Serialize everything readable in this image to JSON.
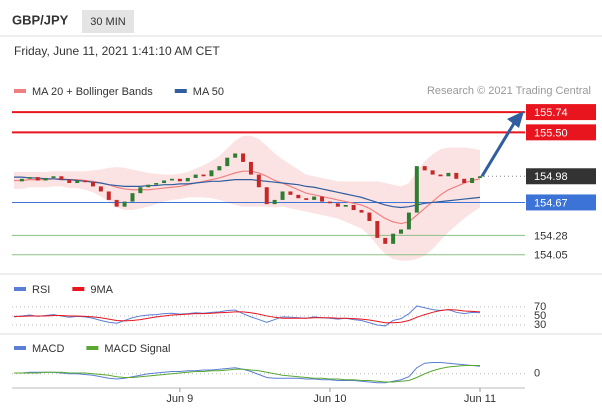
{
  "header": {
    "symbol": "GBP/JPY",
    "interval": "30 MIN",
    "timestamp": "Friday, June 11, 2021 1:41:10 AM CET"
  },
  "chart_data": [
    {
      "type": "candlestick",
      "credit": "Research © 2021 Trading Central",
      "categories": [
        null,
        null,
        null,
        null,
        null,
        null,
        null,
        null,
        null,
        null,
        null,
        null,
        null,
        null,
        null,
        null,
        null,
        null,
        null,
        null,
        null,
        "Jun 9",
        null,
        null,
        null,
        null,
        null,
        null,
        null,
        null,
        null,
        null,
        null,
        null,
        null,
        null,
        null,
        null,
        null,
        null,
        "Jun 10",
        null,
        null,
        null,
        null,
        null,
        null,
        null,
        null,
        null,
        null,
        null,
        null,
        null,
        null,
        null,
        null,
        null,
        null,
        "Jun 11"
      ],
      "values": [
        154.92,
        154.95,
        154.97,
        154.93,
        154.96,
        154.98,
        154.94,
        154.9,
        154.93,
        154.91,
        154.86,
        154.8,
        154.7,
        154.62,
        154.68,
        154.78,
        154.85,
        154.88,
        154.9,
        154.93,
        154.95,
        154.92,
        154.96,
        155.0,
        154.98,
        155.05,
        155.1,
        155.2,
        155.25,
        155.15,
        155.0,
        154.85,
        154.65,
        154.7,
        154.8,
        154.76,
        154.72,
        154.7,
        154.74,
        154.68,
        154.66,
        154.62,
        154.64,
        154.58,
        154.55,
        154.45,
        154.25,
        154.18,
        154.3,
        154.35,
        154.55,
        155.1,
        155.05,
        155.0,
        154.98,
        155.02,
        154.95,
        154.9,
        154.96,
        154.98
      ],
      "up_color": "#2e7d32",
      "down_color": "#c62828",
      "series": [
        {
          "name": "MA 20 + Bollinger Bands",
          "color": "#f08080",
          "values": [
            154.93,
            154.93,
            154.94,
            154.94,
            154.94,
            154.95,
            154.95,
            154.94,
            154.94,
            154.93,
            154.92,
            154.9,
            154.88,
            154.85,
            154.83,
            154.82,
            154.82,
            154.82,
            154.83,
            154.84,
            154.85,
            154.86,
            154.88,
            154.9,
            154.92,
            154.94,
            154.96,
            154.99,
            155.02,
            155.04,
            155.04,
            155.02,
            154.98,
            154.93,
            154.9,
            154.86,
            154.82,
            154.78,
            154.76,
            154.74,
            154.72,
            154.7,
            154.68,
            154.66,
            154.64,
            154.6,
            154.54,
            154.48,
            154.44,
            154.42,
            154.44,
            154.52,
            154.6,
            154.68,
            154.76,
            154.82,
            154.86,
            154.9,
            154.93,
            154.95
          ],
          "upper": [
            155.03,
            155.03,
            155.03,
            155.03,
            155.03,
            155.04,
            155.04,
            155.04,
            155.04,
            155.04,
            155.05,
            155.06,
            155.08,
            155.09,
            155.08,
            155.06,
            155.04,
            155.02,
            155.01,
            155.0,
            155.0,
            155.01,
            155.03,
            155.07,
            155.11,
            155.16,
            155.22,
            155.31,
            155.4,
            155.46,
            155.46,
            155.42,
            155.34,
            155.25,
            155.18,
            155.12,
            155.06,
            155.0,
            154.98,
            154.96,
            154.94,
            154.92,
            154.92,
            154.92,
            154.92,
            154.92,
            154.92,
            154.9,
            154.88,
            154.86,
            154.9,
            155.04,
            155.16,
            155.24,
            155.3,
            155.32,
            155.32,
            155.32,
            155.31,
            155.29
          ],
          "lower": [
            154.83,
            154.83,
            154.85,
            154.85,
            154.85,
            154.86,
            154.86,
            154.84,
            154.84,
            154.82,
            154.79,
            154.74,
            154.68,
            154.61,
            154.58,
            154.58,
            154.6,
            154.62,
            154.65,
            154.68,
            154.7,
            154.71,
            154.73,
            154.73,
            154.73,
            154.72,
            154.7,
            154.67,
            154.64,
            154.62,
            154.62,
            154.62,
            154.62,
            154.61,
            154.62,
            154.6,
            154.58,
            154.56,
            154.54,
            154.52,
            154.5,
            154.48,
            154.44,
            154.4,
            154.36,
            154.28,
            154.16,
            154.06,
            154.0,
            153.98,
            153.98,
            154.0,
            154.04,
            154.12,
            154.22,
            154.32,
            154.4,
            154.48,
            154.55,
            154.61
          ],
          "band_color": "#fbdcdc"
        },
        {
          "name": "MA 50",
          "color": "#2f5d9e",
          "values": [
            154.97,
            154.97,
            154.96,
            154.96,
            154.95,
            154.95,
            154.94,
            154.94,
            154.93,
            154.92,
            154.91,
            154.9,
            154.88,
            154.87,
            154.86,
            154.86,
            154.86,
            154.87,
            154.87,
            154.88,
            154.88,
            154.89,
            154.89,
            154.9,
            154.91,
            154.92,
            154.92,
            154.93,
            154.94,
            154.94,
            154.94,
            154.93,
            154.92,
            154.91,
            154.9,
            154.89,
            154.88,
            154.86,
            154.85,
            154.83,
            154.81,
            154.79,
            154.77,
            154.75,
            154.73,
            154.7,
            154.67,
            154.64,
            154.62,
            154.61,
            154.62,
            154.64,
            154.66,
            154.67,
            154.68,
            154.69,
            154.7,
            154.71,
            154.72,
            154.73
          ]
        }
      ],
      "levels": [
        {
          "value": 155.74,
          "color": "#e8141e"
        },
        {
          "value": 155.5,
          "label": "155.50",
          "color": "#e8141e"
        },
        {
          "value": 154.98,
          "color": "#333333"
        },
        {
          "value": 154.67,
          "color": "#3b73d6"
        },
        {
          "value": 154.28,
          "color": "#8cc084"
        },
        {
          "value": 154.05,
          "color": "#8cc084"
        }
      ],
      "ylim": [
        153.87,
        156.12
      ]
    },
    {
      "type": "line",
      "ylim": [
        19,
        94
      ],
      "yticks": [
        70,
        50,
        30
      ],
      "series": [
        {
          "name": "RSI",
          "color": "#5b7fd6",
          "values": [
            48,
            50,
            52,
            49,
            51,
            53,
            50,
            47,
            49,
            48,
            45,
            40,
            36,
            34,
            40,
            46,
            50,
            52,
            53,
            55,
            56,
            54,
            55,
            57,
            56,
            58,
            59,
            62,
            63,
            55,
            48,
            42,
            36,
            42,
            48,
            47,
            46,
            45,
            48,
            46,
            45,
            43,
            45,
            42,
            40,
            35,
            30,
            28,
            40,
            44,
            55,
            72,
            68,
            64,
            62,
            64,
            58,
            55,
            58,
            57
          ]
        },
        {
          "name": "9MA",
          "color": "#e8141e",
          "values": [
            49,
            49,
            50,
            50,
            50,
            51,
            51,
            50,
            50,
            49,
            48,
            46,
            43,
            40,
            39,
            40,
            42,
            45,
            48,
            50,
            52,
            53,
            54,
            55,
            55,
            56,
            57,
            58,
            59,
            59,
            57,
            54,
            50,
            47,
            45,
            45,
            45,
            45,
            46,
            46,
            46,
            45,
            45,
            44,
            43,
            41,
            38,
            35,
            35,
            36,
            40,
            47,
            53,
            58,
            62,
            64,
            63,
            61,
            60,
            59
          ]
        }
      ]
    },
    {
      "type": "line",
      "ylim": [
        -0.15,
        0.25
      ],
      "yticks": [
        0
      ],
      "series": [
        {
          "name": "MACD",
          "color": "#5b7fd6",
          "values": [
            0.01,
            0.01,
            0.02,
            0.02,
            0.02,
            0.02,
            0.01,
            0.0,
            0.0,
            -0.01,
            -0.02,
            -0.04,
            -0.06,
            -0.07,
            -0.06,
            -0.04,
            -0.02,
            0.0,
            0.01,
            0.02,
            0.03,
            0.03,
            0.04,
            0.04,
            0.05,
            0.05,
            0.06,
            0.07,
            0.08,
            0.06,
            0.03,
            -0.01,
            -0.05,
            -0.06,
            -0.06,
            -0.06,
            -0.06,
            -0.07,
            -0.07,
            -0.08,
            -0.08,
            -0.09,
            -0.09,
            -0.09,
            -0.1,
            -0.11,
            -0.12,
            -0.12,
            -0.1,
            -0.08,
            -0.04,
            0.08,
            0.14,
            0.15,
            0.15,
            0.14,
            0.13,
            0.12,
            0.11,
            0.1
          ]
        },
        {
          "name": "MACD Signal",
          "color": "#5aa832",
          "values": [
            0.01,
            0.01,
            0.01,
            0.01,
            0.02,
            0.02,
            0.02,
            0.01,
            0.01,
            0.01,
            0.0,
            -0.01,
            -0.02,
            -0.04,
            -0.05,
            -0.05,
            -0.04,
            -0.03,
            -0.02,
            -0.01,
            0.0,
            0.01,
            0.02,
            0.03,
            0.03,
            0.04,
            0.04,
            0.05,
            0.06,
            0.06,
            0.05,
            0.04,
            0.02,
            0.0,
            -0.02,
            -0.03,
            -0.04,
            -0.05,
            -0.06,
            -0.06,
            -0.07,
            -0.07,
            -0.08,
            -0.08,
            -0.09,
            -0.09,
            -0.1,
            -0.11,
            -0.11,
            -0.1,
            -0.09,
            -0.05,
            0.0,
            0.04,
            0.07,
            0.09,
            0.1,
            0.11,
            0.11,
            0.11
          ]
        }
      ]
    }
  ]
}
